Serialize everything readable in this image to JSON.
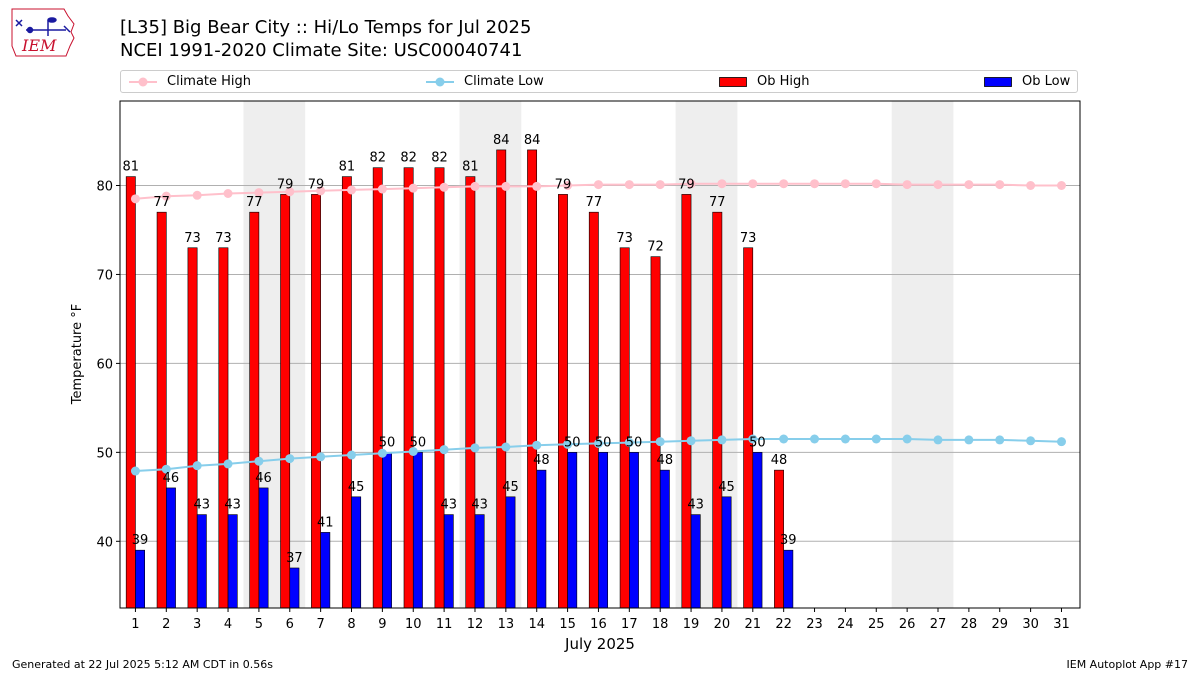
{
  "header": {
    "title_line1": "[L35] Big Bear City :: Hi/Lo Temps for Jul 2025",
    "title_line2": "NCEI 1991-2020 Climate Site: USC00040741",
    "logo_text": "IEM"
  },
  "footer": {
    "left": "Generated at 22 Jul 2025 5:12 AM CDT in 0.56s",
    "right": "IEM Autoplot App #17"
  },
  "colors": {
    "ob_high": "#ff0000",
    "ob_low": "#0000ff",
    "climate_high": "#ffc0cb",
    "climate_low": "#87ceeb",
    "weekend_shade": "#eeeeee",
    "grid": "#b0b0b0"
  },
  "chart_data": {
    "type": "bar",
    "xlabel": "July 2025",
    "ylabel": "Temperature °F",
    "ylim": [
      32.5,
      89.5
    ],
    "yticks": [
      40,
      50,
      60,
      70,
      80
    ],
    "grid": "horizontal",
    "legend_position": "top",
    "categories": [
      "1",
      "2",
      "3",
      "4",
      "5",
      "6",
      "7",
      "8",
      "9",
      "10",
      "11",
      "12",
      "13",
      "14",
      "15",
      "16",
      "17",
      "18",
      "19",
      "20",
      "21",
      "22",
      "23",
      "24",
      "25",
      "26",
      "27",
      "28",
      "29",
      "30",
      "31"
    ],
    "shaded_day_spans": [
      [
        5,
        6
      ],
      [
        12,
        13
      ],
      [
        19,
        20
      ],
      [
        26,
        27
      ]
    ],
    "series": [
      {
        "name": "Ob High",
        "kind": "bar",
        "values": [
          81,
          77,
          73,
          73,
          77,
          79,
          79,
          81,
          82,
          82,
          82,
          81,
          84,
          84,
          79,
          77,
          73,
          72,
          79,
          77,
          73,
          48,
          null,
          null,
          null,
          null,
          null,
          null,
          null,
          null,
          null
        ]
      },
      {
        "name": "Ob Low",
        "kind": "bar",
        "values": [
          39,
          46,
          43,
          43,
          46,
          37,
          41,
          45,
          50,
          50,
          43,
          43,
          45,
          48,
          50,
          50,
          50,
          48,
          43,
          45,
          50,
          39,
          null,
          null,
          null,
          null,
          null,
          null,
          null,
          null,
          null
        ]
      },
      {
        "name": "Climate High",
        "kind": "line",
        "values": [
          78.5,
          78.8,
          78.9,
          79.1,
          79.2,
          79.3,
          79.4,
          79.5,
          79.6,
          79.7,
          79.8,
          79.9,
          79.9,
          79.9,
          80.0,
          80.1,
          80.1,
          80.1,
          80.2,
          80.2,
          80.2,
          80.2,
          80.2,
          80.2,
          80.2,
          80.1,
          80.1,
          80.1,
          80.1,
          80.0,
          80.0
        ]
      },
      {
        "name": "Climate Low",
        "kind": "line",
        "values": [
          47.9,
          48.1,
          48.5,
          48.7,
          49.0,
          49.3,
          49.5,
          49.7,
          49.9,
          50.1,
          50.3,
          50.5,
          50.6,
          50.8,
          50.9,
          51.0,
          51.1,
          51.2,
          51.3,
          51.4,
          51.5,
          51.5,
          51.5,
          51.5,
          51.5,
          51.5,
          51.4,
          51.4,
          51.4,
          51.3,
          51.2
        ]
      }
    ]
  }
}
